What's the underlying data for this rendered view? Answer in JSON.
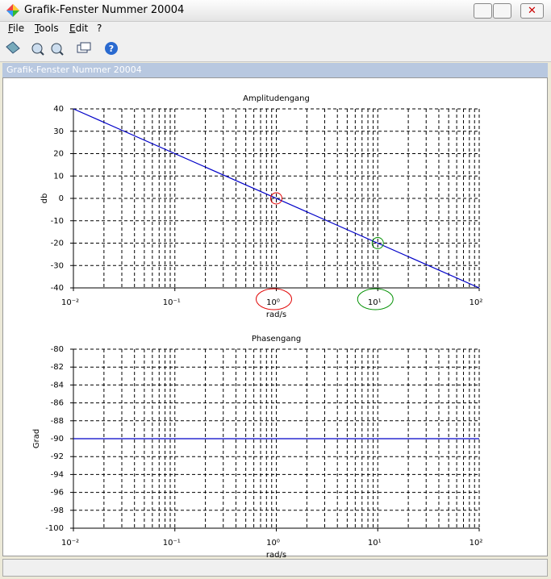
{
  "window": {
    "title": "Grafik-Fenster Nummer 20004",
    "menu": [
      "File",
      "Tools",
      "Edit",
      "?"
    ],
    "panel_title": "Grafik-Fenster Nummer 20004"
  },
  "chart_data": [
    {
      "type": "line",
      "title": "Amplitudengang",
      "x_label": "rad/s",
      "y_label": "db",
      "log_x": true,
      "grid": true,
      "x": [
        0.01,
        100
      ],
      "series": [
        {
          "color": "#0000c8",
          "values": [
            40,
            -40
          ]
        }
      ],
      "markers": [
        {
          "x": 1,
          "y": 0,
          "color": "#e00000"
        },
        {
          "x": 10,
          "y": -20,
          "color": "#009000"
        }
      ],
      "xlim": [
        0.01,
        100
      ],
      "xticks": [
        {
          "value": 0.01,
          "label": "10⁻²"
        },
        {
          "value": 0.1,
          "label": "10⁻¹"
        },
        {
          "value": 1,
          "label": "10⁰"
        },
        {
          "value": 10,
          "label": "10¹"
        },
        {
          "value": 100,
          "label": "10²"
        }
      ],
      "ylim": [
        -40,
        40
      ],
      "yticks": [
        40,
        30,
        20,
        10,
        0,
        -10,
        -20,
        -30,
        -40
      ]
    },
    {
      "type": "line",
      "title": "Phasengang",
      "x_label": "rad/s",
      "y_label": "Grad",
      "log_x": true,
      "grid": true,
      "x": [
        0.01,
        100
      ],
      "series": [
        {
          "color": "#0000c8",
          "values": [
            -90,
            -90
          ]
        }
      ],
      "xlim": [
        0.01,
        100
      ],
      "xticks": [
        {
          "value": 0.01,
          "label": "10⁻²"
        },
        {
          "value": 0.1,
          "label": "10⁻¹"
        },
        {
          "value": 1,
          "label": "10⁰"
        },
        {
          "value": 10,
          "label": "10¹"
        },
        {
          "value": 100,
          "label": "10²"
        }
      ],
      "ylim": [
        -100,
        -80
      ],
      "yticks": [
        -80,
        -82,
        -84,
        -86,
        -88,
        -90,
        -92,
        -94,
        -96,
        -98,
        -100
      ]
    }
  ]
}
